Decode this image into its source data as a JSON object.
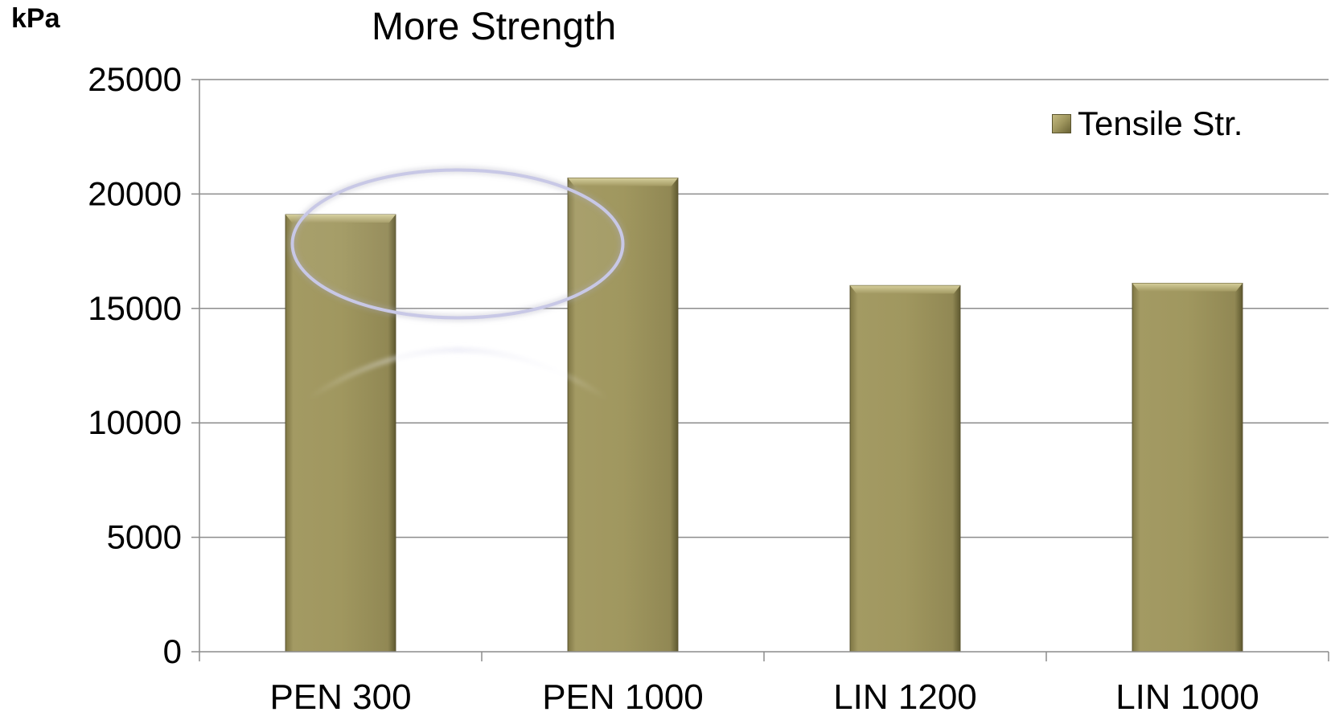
{
  "chart_data": {
    "type": "bar",
    "title": "More Strength",
    "ylabel": "kPa",
    "xlabel": "",
    "categories": [
      "PEN 300",
      "PEN 1000",
      "LIN 1200",
      "LIN 1000"
    ],
    "series": [
      {
        "name": "Tensile Str.",
        "values": [
          19100,
          20700,
          16000,
          16100
        ]
      }
    ],
    "ylim": [
      0,
      25000
    ],
    "yticks": [
      0,
      5000,
      10000,
      15000,
      20000,
      25000
    ],
    "grid": true,
    "legend_position": "top-right",
    "bar_color": "#9e955d",
    "highlight_color": "#c8c8e6"
  }
}
